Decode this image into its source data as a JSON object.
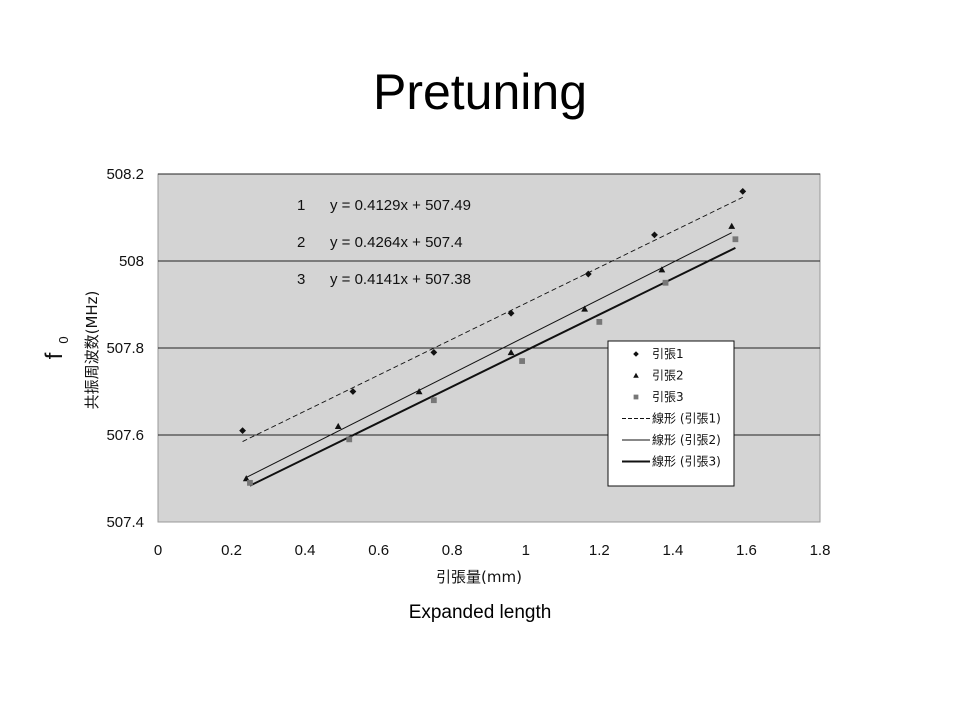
{
  "slide": {
    "title": "Pretuning",
    "caption": "Expanded length"
  },
  "chart_data": {
    "type": "scatter",
    "xlabel": "引張量(mm)",
    "ylabel_symbol": "f",
    "ylabel_subscript": "0",
    "ylabel": "共振周波数(MHz)",
    "xlim": [
      0,
      1.8
    ],
    "ylim": [
      507.4,
      508.2
    ],
    "x_ticks": [
      "0",
      "0.2",
      "0.4",
      "0.6",
      "0.8",
      "1",
      "1.2",
      "1.4",
      "1.6",
      "1.8"
    ],
    "y_ticks": [
      "507.4",
      "507.6",
      "507.8",
      "508",
      "508.2"
    ],
    "grid": "horizontal",
    "legend_position": "bottom-right",
    "equations": [
      {
        "index": "1",
        "text": "y = 0.4129x + 507.49"
      },
      {
        "index": "2",
        "text": "y = 0.4264x + 507.4"
      },
      {
        "index": "3",
        "text": "y = 0.4141x + 507.38"
      }
    ],
    "series": [
      {
        "name": "引張1",
        "marker": "diamond",
        "points": [
          [
            0.23,
            507.61
          ],
          [
            0.53,
            507.7
          ],
          [
            0.75,
            507.79
          ],
          [
            0.96,
            507.88
          ],
          [
            1.17,
            507.97
          ],
          [
            1.35,
            508.06
          ],
          [
            1.59,
            508.16
          ]
        ]
      },
      {
        "name": "引張2",
        "marker": "triangle",
        "points": [
          [
            0.24,
            507.5
          ],
          [
            0.49,
            507.62
          ],
          [
            0.71,
            507.7
          ],
          [
            0.96,
            507.79
          ],
          [
            1.16,
            507.89
          ],
          [
            1.37,
            507.98
          ],
          [
            1.56,
            508.08
          ]
        ]
      },
      {
        "name": "引張3",
        "marker": "square",
        "points": [
          [
            0.25,
            507.49
          ],
          [
            0.52,
            507.59
          ],
          [
            0.75,
            507.68
          ],
          [
            0.99,
            507.77
          ],
          [
            1.2,
            507.86
          ],
          [
            1.38,
            507.95
          ],
          [
            1.57,
            508.05
          ]
        ]
      }
    ],
    "trendlines": [
      {
        "name": "線形 (引張1)",
        "style": "dashed",
        "slope": 0.4129,
        "intercept": 507.49,
        "x_range": [
          0.23,
          1.59
        ]
      },
      {
        "name": "線形 (引張2)",
        "style": "thin",
        "slope": 0.4264,
        "intercept": 507.4,
        "x_range": [
          0.24,
          1.56
        ]
      },
      {
        "name": "線形 (引張3)",
        "style": "thick",
        "slope": 0.4141,
        "intercept": 507.38,
        "x_range": [
          0.25,
          1.57
        ]
      }
    ],
    "colors": {
      "plot_background": "#d4d4d4",
      "ink": "#111111",
      "legend_background": "#ffffff",
      "gridline": "#222222"
    }
  }
}
